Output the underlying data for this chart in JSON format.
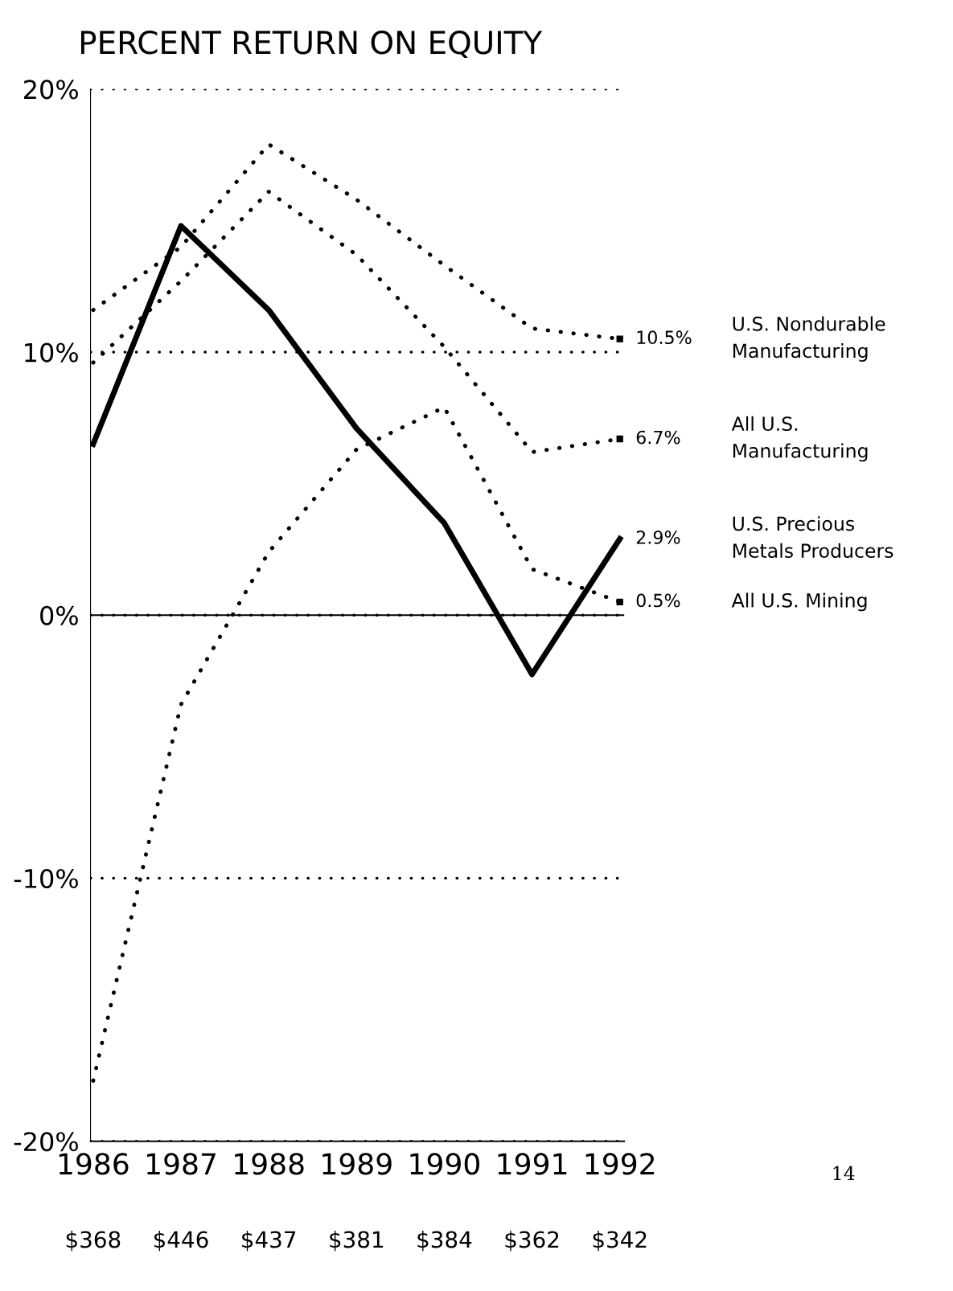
{
  "chart_data": {
    "type": "line",
    "title": "PERCENT RETURN ON EQUITY",
    "categories": [
      "1986",
      "1987",
      "1988",
      "1989",
      "1990",
      "1991",
      "1992"
    ],
    "ylim": [
      -20,
      20
    ],
    "yticks": [
      {
        "value": -20,
        "label": "-20%"
      },
      {
        "value": -10,
        "label": "-10%"
      },
      {
        "value": 0,
        "label": "0%"
      },
      {
        "value": 10,
        "label": "10%"
      },
      {
        "value": 20,
        "label": "20%"
      }
    ],
    "grid": "y",
    "legend": false,
    "ref_lines": [
      {
        "axis": "y",
        "value": 0,
        "line_style": "solid",
        "color": "#000000"
      }
    ],
    "series": [
      {
        "name": "U.S. Nondurable\nManufacturing",
        "color": "#000000",
        "line_style": "dotted",
        "values": [
          11.6,
          14.0,
          17.9,
          15.8,
          13.3,
          10.9,
          10.5
        ],
        "value_labels": [
          null,
          null,
          null,
          null,
          null,
          null,
          "10.5%"
        ]
      },
      {
        "name": "All U.S.\nManufacturing",
        "color": "#000000",
        "line_style": "dotted",
        "values": [
          9.6,
          12.7,
          16.1,
          13.7,
          10.2,
          6.2,
          6.7
        ],
        "value_labels": [
          null,
          null,
          null,
          null,
          null,
          null,
          "6.7%"
        ]
      },
      {
        "name": "U.S. Precious\nMetals Producers",
        "color": "#000000",
        "line_style": "solid",
        "values": [
          6.5,
          14.8,
          11.6,
          7.1,
          3.5,
          -2.25,
          2.9
        ],
        "value_labels": [
          null,
          null,
          null,
          null,
          null,
          null,
          "2.9%"
        ]
      },
      {
        "name": "All U.S. Mining",
        "color": "#000000",
        "line_style": "dotted",
        "values": [
          -17.7,
          -3.4,
          2.4,
          6.3,
          7.9,
          1.75,
          0.5
        ],
        "value_labels": [
          null,
          null,
          null,
          null,
          null,
          null,
          "0.5%"
        ]
      }
    ],
    "annotations": [
      "$368",
      "$446",
      "$437",
      "$381",
      "$384",
      "$362",
      "$342",
      "14"
    ]
  }
}
